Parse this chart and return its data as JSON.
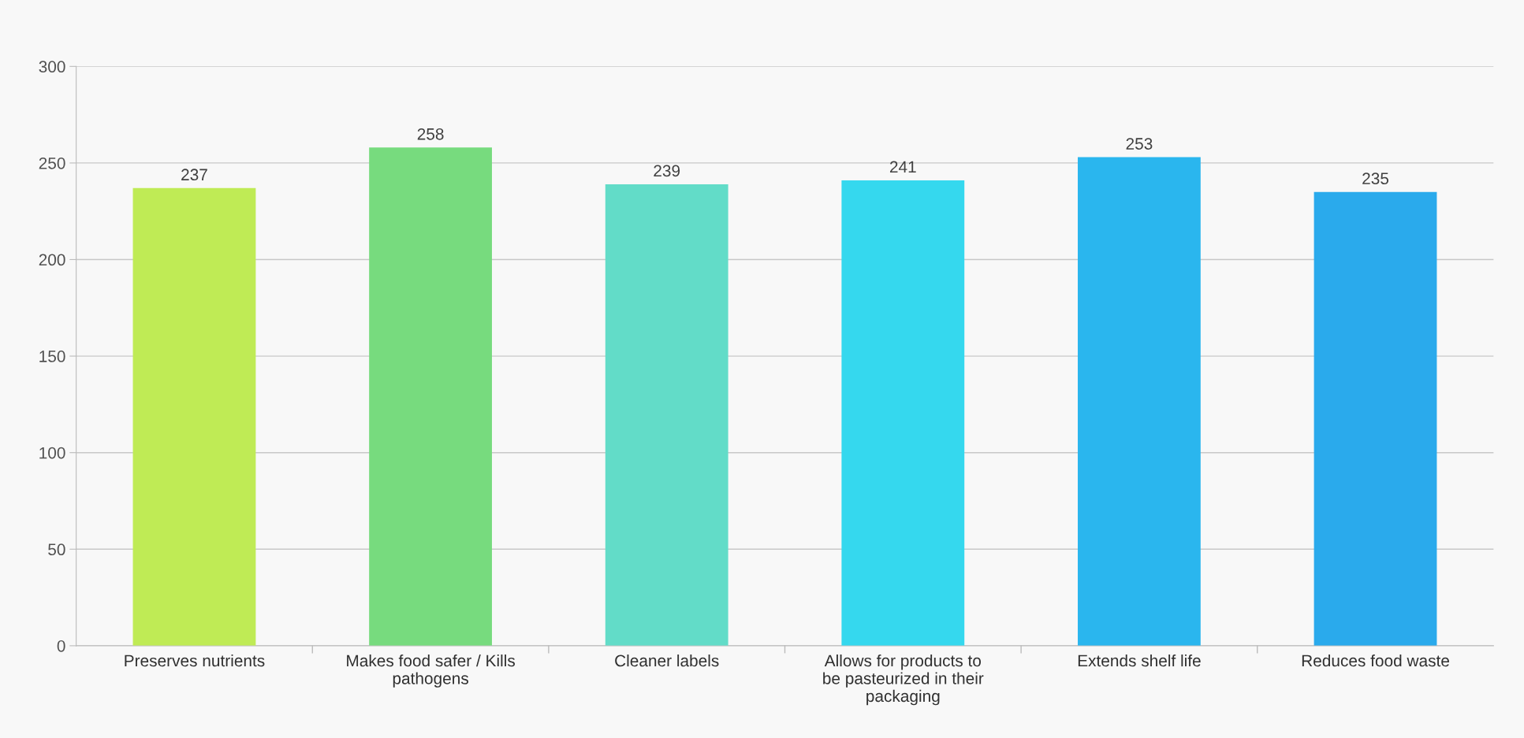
{
  "chart_data": {
    "type": "bar",
    "categories": [
      "Preserves nutrients",
      "Makes food safer / Kills\npathogens",
      "Cleaner labels",
      "Allows for products to\nbe pasteurized in their\npackaging",
      "Extends shelf life",
      "Reduces food waste"
    ],
    "values": [
      237,
      258,
      239,
      241,
      253,
      235
    ],
    "colors": [
      "#bfeb55",
      "#77db7e",
      "#62dcc8",
      "#35d8ee",
      "#2ab6ee",
      "#2aaaec"
    ],
    "ylim": [
      0,
      300
    ],
    "yticks": [
      0,
      50,
      100,
      150,
      200,
      250,
      300
    ],
    "grid": "y",
    "data_labels": true,
    "legend": false
  }
}
